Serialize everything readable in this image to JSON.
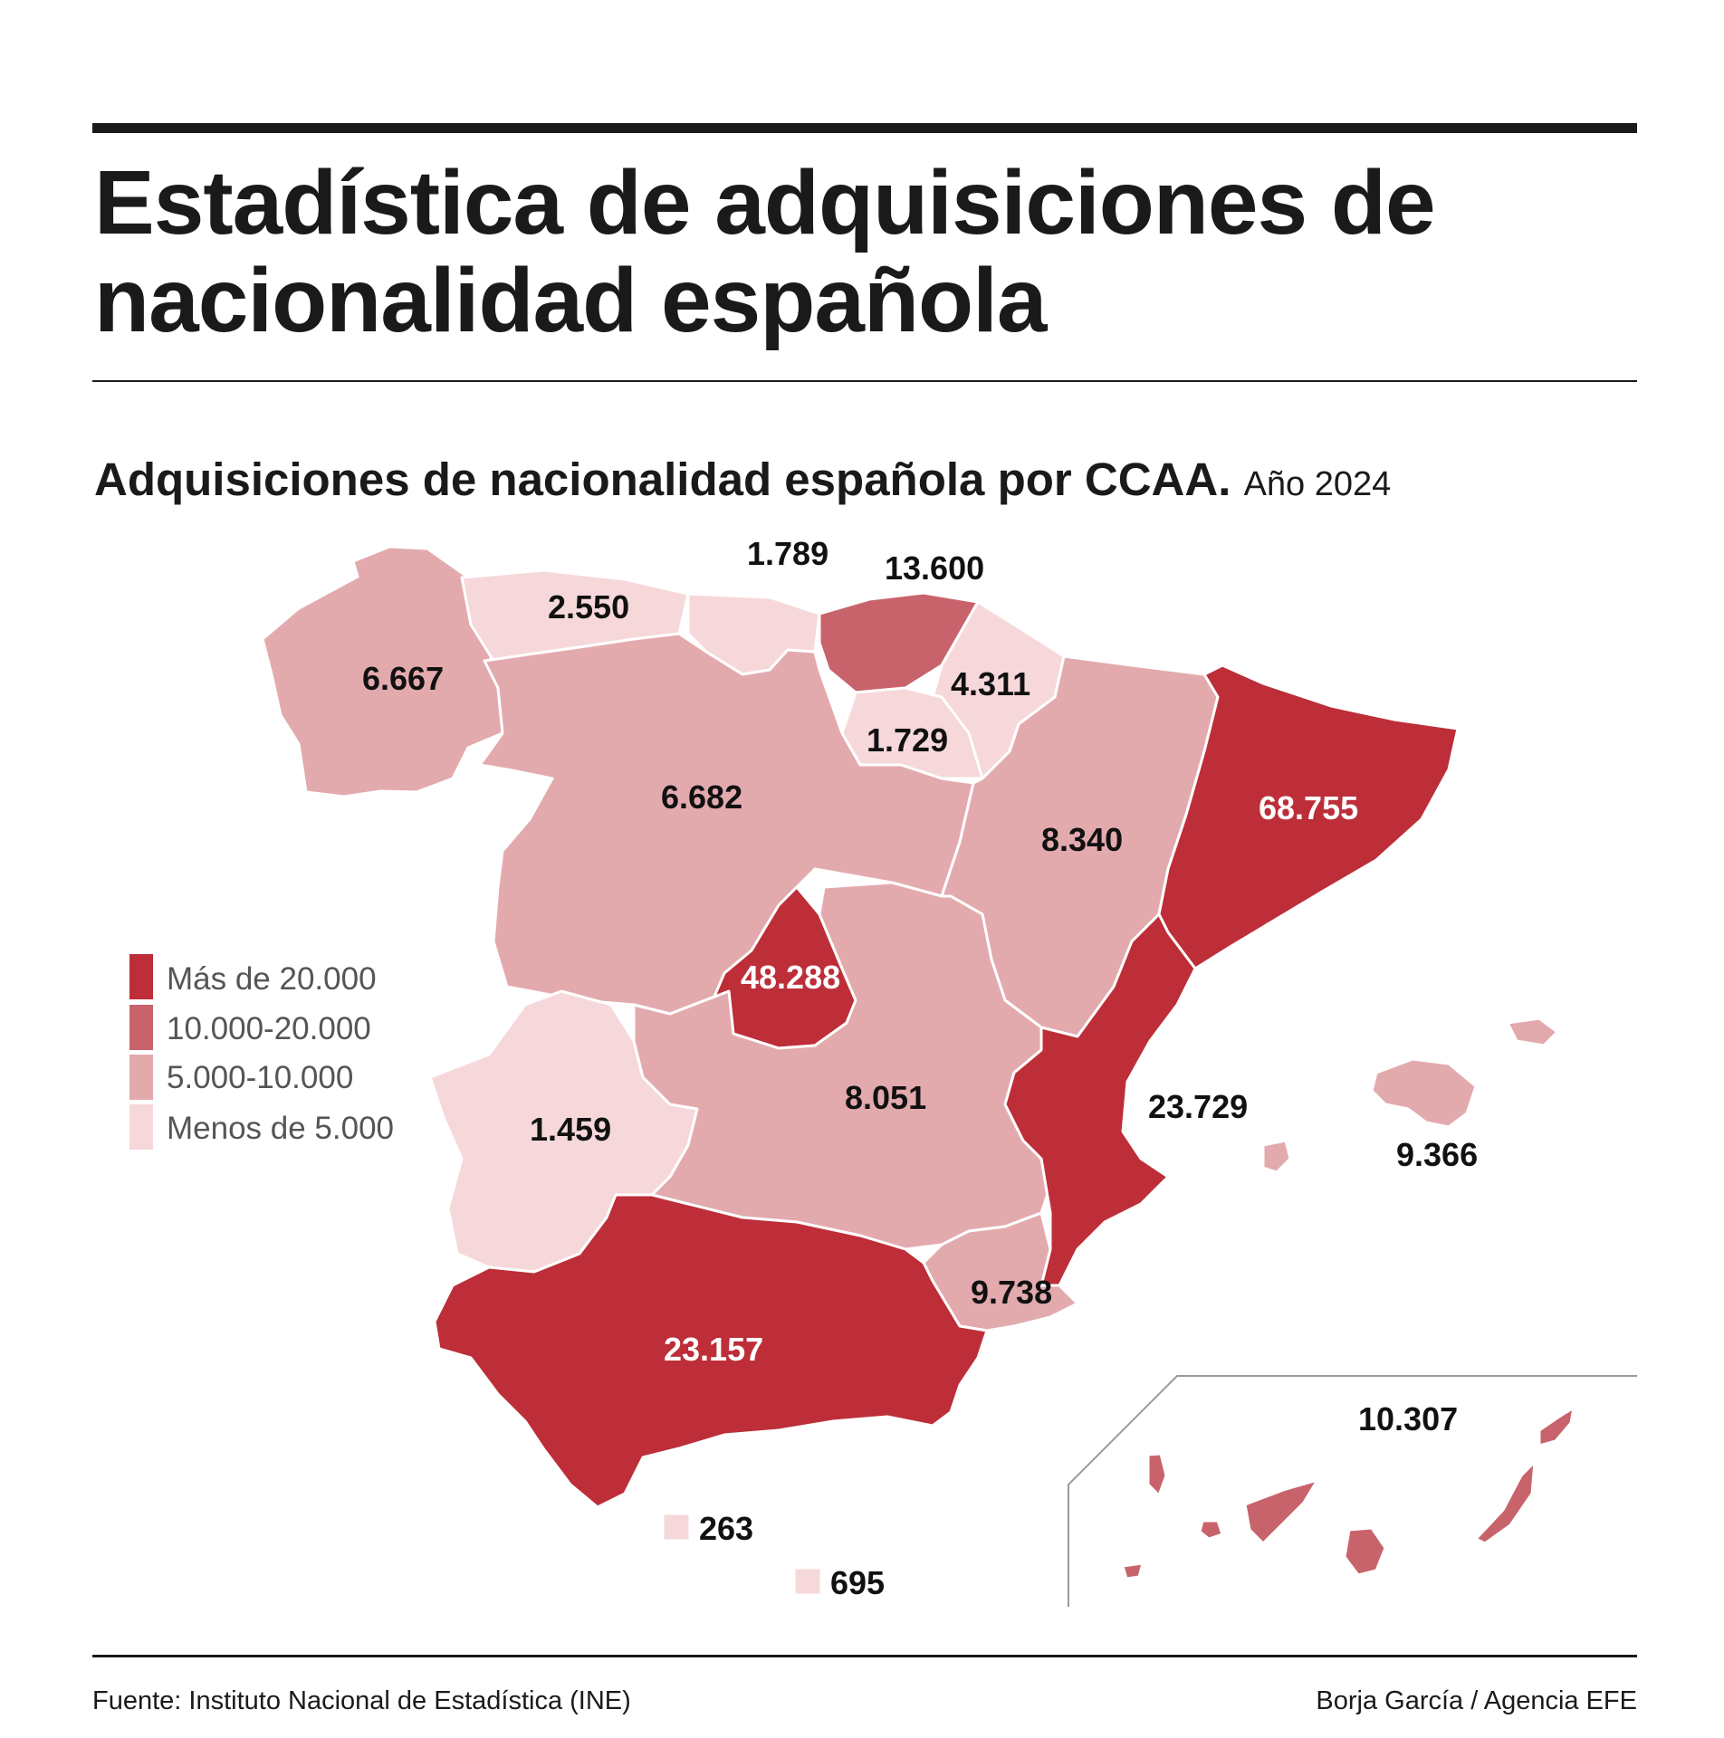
{
  "title": "Estadística de adquisiciones de nacionalidad española",
  "subtitle": {
    "main": "Adquisiciones de nacionalidad española por CCAA.",
    "year": "Año 2024"
  },
  "colors": {
    "mas_de_20000": "#bd2e38",
    "de_10000_a_20000": "#c8636c",
    "de_5000_a_10000": "#e3aaae",
    "menos_de_5000": "#f7d8da"
  },
  "legend": [
    {
      "label": "Más de 20.000",
      "color": "#bd2e38"
    },
    {
      "label": "10.000-20.000",
      "color": "#c8636c"
    },
    {
      "label": "5.000-10.000",
      "color": "#e3aaae"
    },
    {
      "label": "Menos de 5.000",
      "color": "#f7d8da"
    }
  ],
  "regions": {
    "galicia": "6.667",
    "asturias": "2.550",
    "cantabria": "1.789",
    "pais_vasco": "13.600",
    "navarra": "4.311",
    "la_rioja": "1.729",
    "castilla_leon": "6.682",
    "aragon": "8.340",
    "cataluna": "68.755",
    "madrid": "48.288",
    "extremadura": "1.459",
    "castilla_la_mancha": "8.051",
    "comunidad_valenciana": "23.729",
    "baleares": "9.366",
    "murcia": "9.738",
    "andalucia": "23.157",
    "ceuta": "263",
    "melilla": "695",
    "canarias": "10.307"
  },
  "source": "Fuente: Instituto Nacional de Estadística (INE)",
  "credit": "Borja García / Agencia EFE"
}
